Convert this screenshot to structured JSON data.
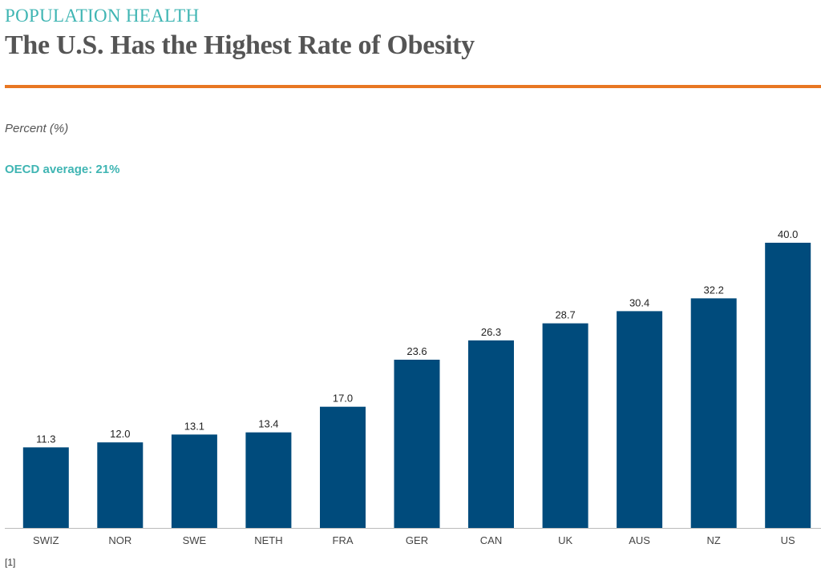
{
  "header": {
    "kicker": "POPULATION HEALTH",
    "title": "The U.S. Has the Highest Rate of Obesity",
    "rule_color": "#e87722"
  },
  "chart_data": {
    "type": "bar",
    "title": "The U.S. Has the Highest Rate of Obesity",
    "ylabel": "Percent (%)",
    "annotation": "OECD average: 21%",
    "categories": [
      "SWIZ",
      "NOR",
      "SWE",
      "NETH",
      "FRA",
      "GER",
      "CAN",
      "UK",
      "AUS",
      "NZ",
      "US"
    ],
    "values": [
      11.3,
      12.0,
      13.1,
      13.4,
      17.0,
      23.6,
      26.3,
      28.7,
      30.4,
      32.2,
      40.0
    ],
    "value_labels": [
      "11.3",
      "12.0",
      "13.1",
      "13.4",
      "17.0",
      "23.6",
      "26.3",
      "28.7",
      "30.4",
      "32.2",
      "40.0"
    ],
    "ylim": [
      0,
      40
    ],
    "grid": false,
    "bar_color": "#004b7c",
    "accent_color": "#3fb5b3"
  },
  "footnote": "[1]"
}
